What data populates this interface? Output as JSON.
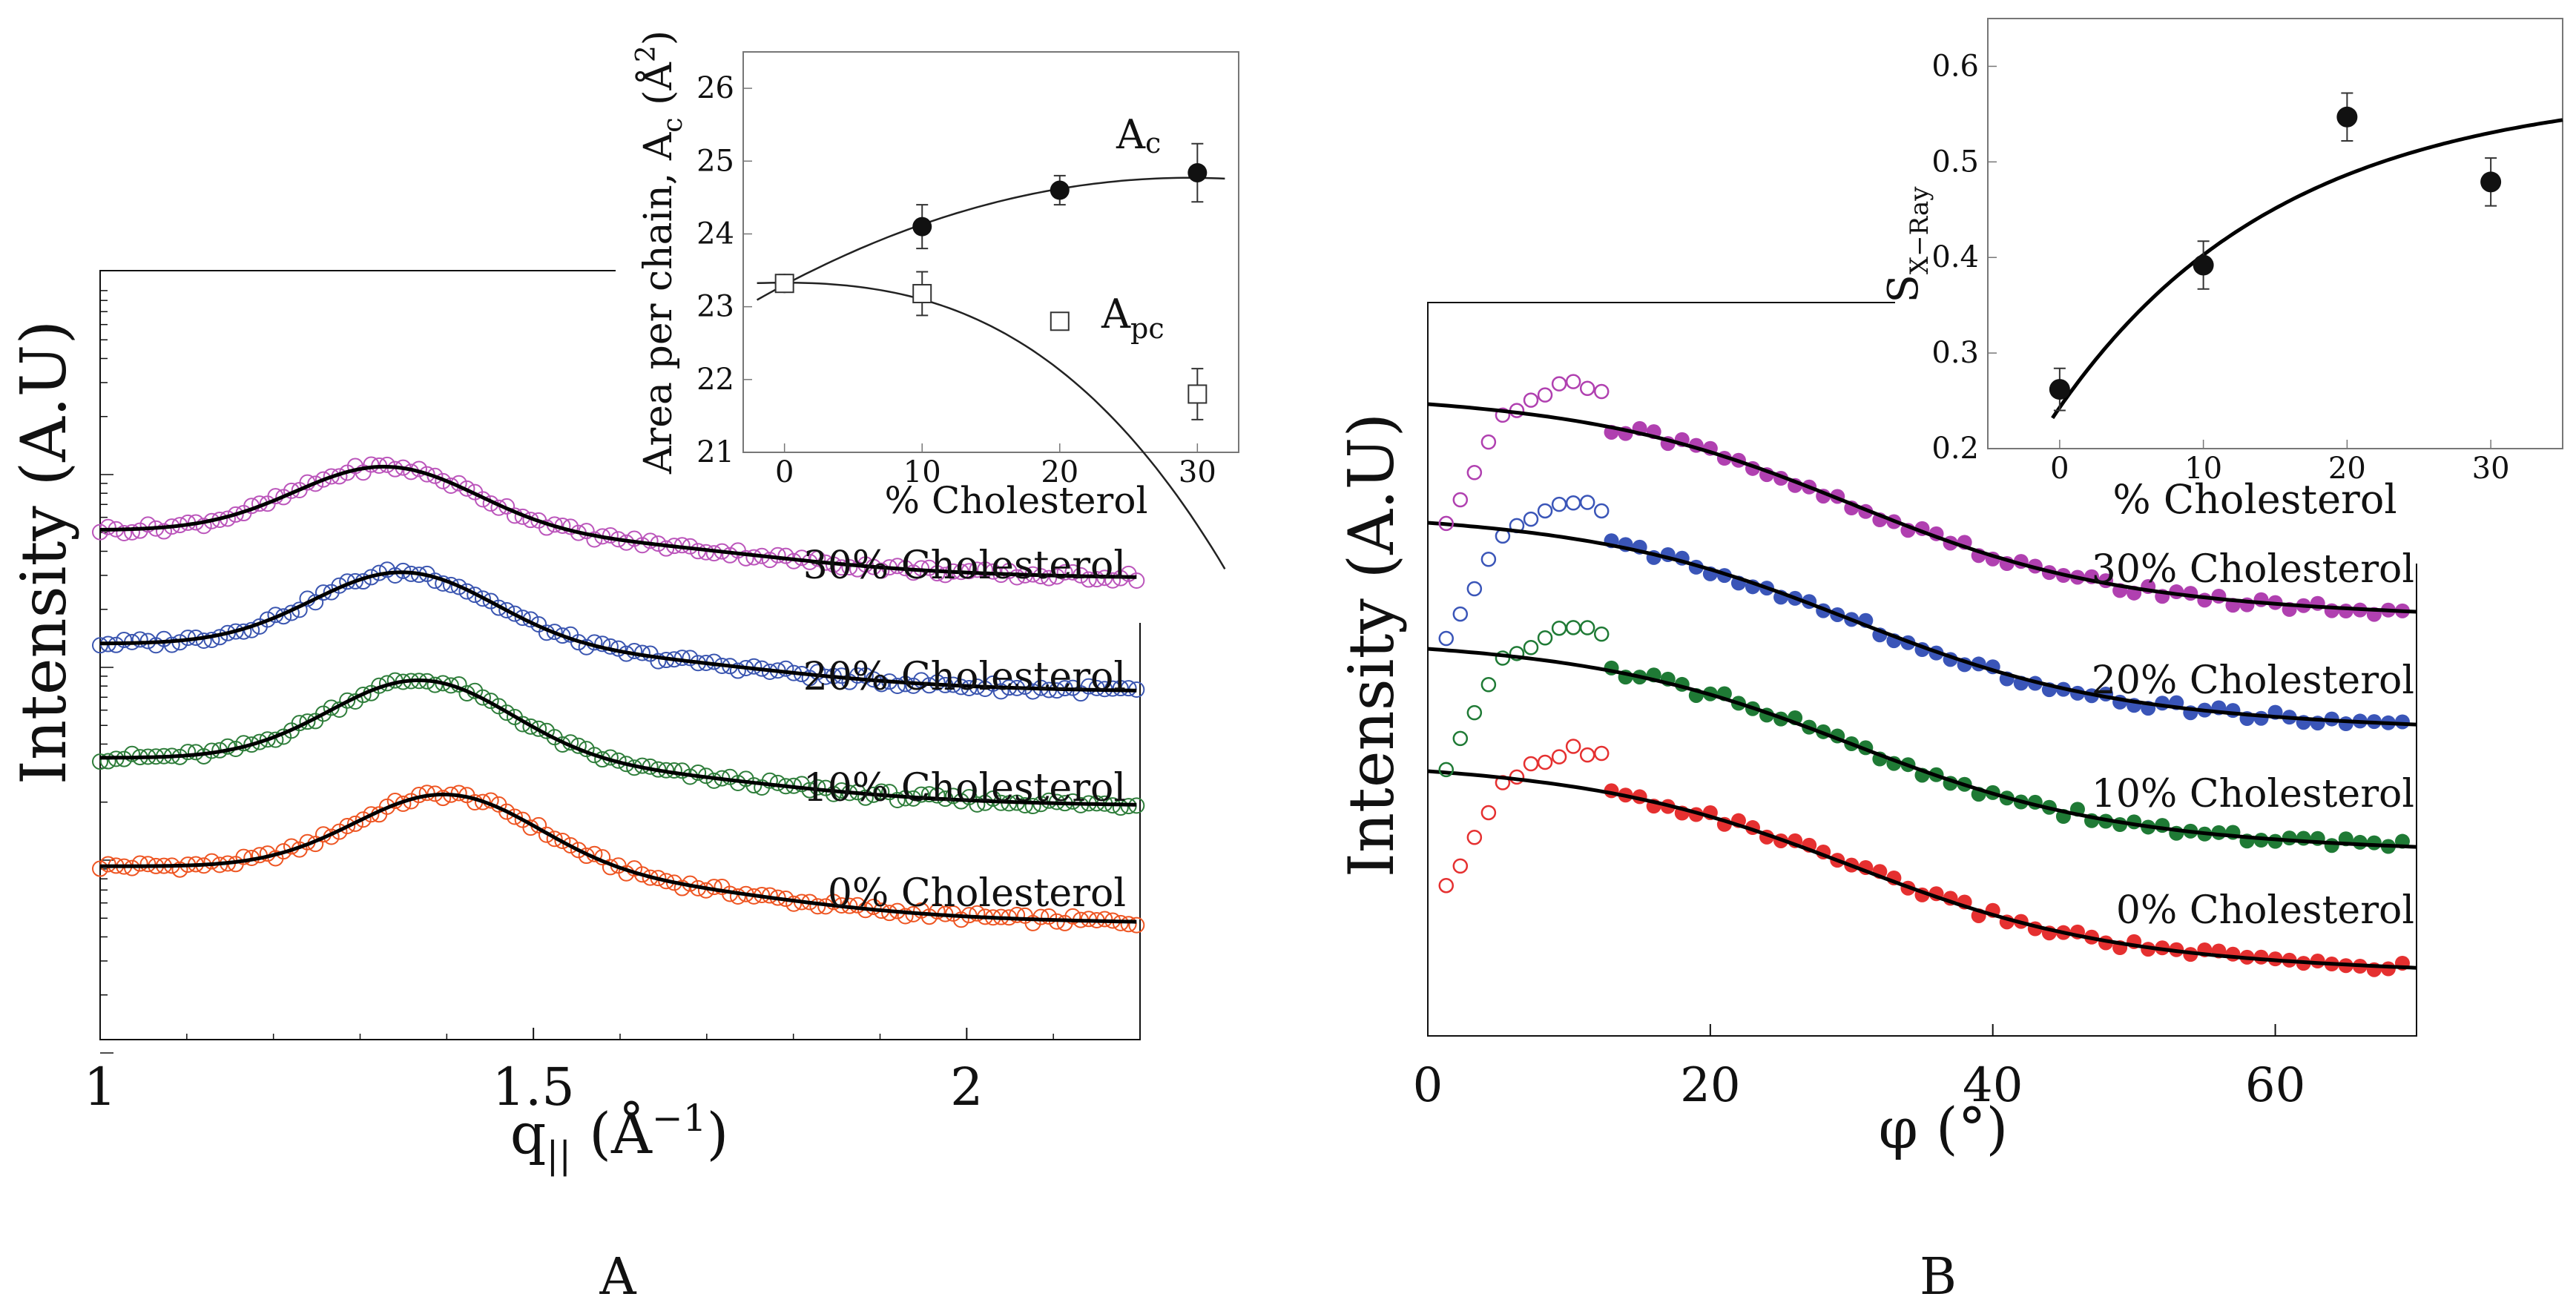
{
  "panel_labels": {
    "a": "A",
    "b": "B"
  },
  "chart_data": [
    {
      "id": "A-main",
      "type": "scatter",
      "xlabel": "q||(Å−1)",
      "xlabel_parts": {
        "q": "q",
        "sub": "||",
        "unit": " (Å",
        "exp": "−1",
        "close": ")"
      },
      "ylabel": "Intensity (A.U)",
      "xlim": [
        1.0,
        2.2
      ],
      "x_ticks": [
        1,
        1.5,
        2
      ],
      "x_tick_labels": [
        "1",
        "1.5",
        "2"
      ],
      "marker": "open-circle",
      "fit_color": "#000000",
      "series": [
        {
          "name": "0% Cholesterol",
          "label": "0% Cholesterol",
          "color": "#ee5522",
          "center": 1.4,
          "width": 0.105,
          "amp": 0.93,
          "base": 0,
          "tail": 1.16,
          "offset": 0
        },
        {
          "name": "10% Cholesterol",
          "label": "10% Cholesterol",
          "color": "#2e7d3a",
          "center": 1.37,
          "width": 0.105,
          "amp": 0.99,
          "base": 0,
          "tail": 0.96,
          "offset": 1
        },
        {
          "name": "20% Cholesterol",
          "label": "20% Cholesterol",
          "color": "#3a55b0",
          "center": 1.35,
          "width": 0.105,
          "amp": 0.91,
          "base": 0,
          "tail": 0.96,
          "offset": 2
        },
        {
          "name": "30% Cholesterol",
          "label": "30% Cholesterol",
          "color": "#bb55bb",
          "center": 1.33,
          "width": 0.105,
          "amp": 0.81,
          "base": 0,
          "tail": 0.96,
          "offset": 3
        }
      ]
    },
    {
      "id": "A-inset",
      "type": "scatter",
      "xlabel": "% Cholesterol",
      "ylabel": "Area per chain, Ac (Å2)",
      "ylabel_parts": {
        "main": "Area per chain, A",
        "sub": "c",
        "unit": " (Å",
        "exp": "2",
        "close": ")"
      },
      "xlim": [
        -3,
        33
      ],
      "ylim": [
        21,
        26.5
      ],
      "x_ticks": [
        0,
        10,
        20,
        30
      ],
      "y_ticks": [
        21,
        22,
        23,
        24,
        25,
        26
      ],
      "series": [
        {
          "name": "Ac",
          "label": "A",
          "label_sub": "c",
          "marker": "filled-circle",
          "x": [
            0,
            10,
            20,
            30
          ],
          "y": [
            23.32,
            24.1,
            24.6,
            24.84
          ],
          "err": [
            0.12,
            0.3,
            0.2,
            0.4
          ]
        },
        {
          "name": "Apc",
          "label": "A",
          "label_sub": "pc",
          "marker": "open-square",
          "x": [
            0,
            10,
            20,
            30
          ],
          "y": [
            23.32,
            23.18,
            22.8,
            21.8
          ],
          "err": [
            0.12,
            0.3,
            0.12,
            0.35
          ]
        }
      ]
    },
    {
      "id": "B-main",
      "type": "scatter",
      "xlabel": "φ (°)",
      "ylabel": "Intensity (A.U)",
      "xlim": [
        0,
        70
      ],
      "x_ticks": [
        0,
        20,
        40,
        60
      ],
      "marker": "filled-circle (open-circle for φ < 13°)",
      "series": [
        {
          "name": "0% Cholesterol",
          "label": "0% Cholesterol",
          "color": "#e53030",
          "offset": 0
        },
        {
          "name": "10% Cholesterol",
          "label": "10% Cholesterol",
          "color": "#1f7a35",
          "offset": 1
        },
        {
          "name": "20% Cholesterol",
          "label": "20% Cholesterol",
          "color": "#3a55b8",
          "offset": 2
        },
        {
          "name": "30% Cholesterol",
          "label": "30% Cholesterol",
          "color": "#b040b0",
          "offset": 3
        }
      ]
    },
    {
      "id": "B-inset",
      "type": "scatter",
      "xlabel": "% Cholesterol",
      "ylabel": "SX−Ray",
      "ylabel_parts": {
        "main": "S",
        "sub": "X−Ray"
      },
      "xlim": [
        -5,
        35
      ],
      "ylim": [
        0.2,
        0.65
      ],
      "x_ticks": [
        0,
        10,
        20,
        30
      ],
      "y_ticks": [
        0.2,
        0.3,
        0.4,
        0.5,
        0.6
      ],
      "series": [
        {
          "name": "S",
          "marker": "filled-circle",
          "x": [
            0,
            10,
            20,
            30
          ],
          "y": [
            0.262,
            0.392,
            0.547,
            0.479
          ],
          "err": [
            0.022,
            0.025,
            0.025,
            0.025
          ]
        }
      ],
      "fit": {
        "type": "saturation",
        "y0": 0.232,
        "a": 0.347,
        "k": 0.0645
      }
    }
  ]
}
